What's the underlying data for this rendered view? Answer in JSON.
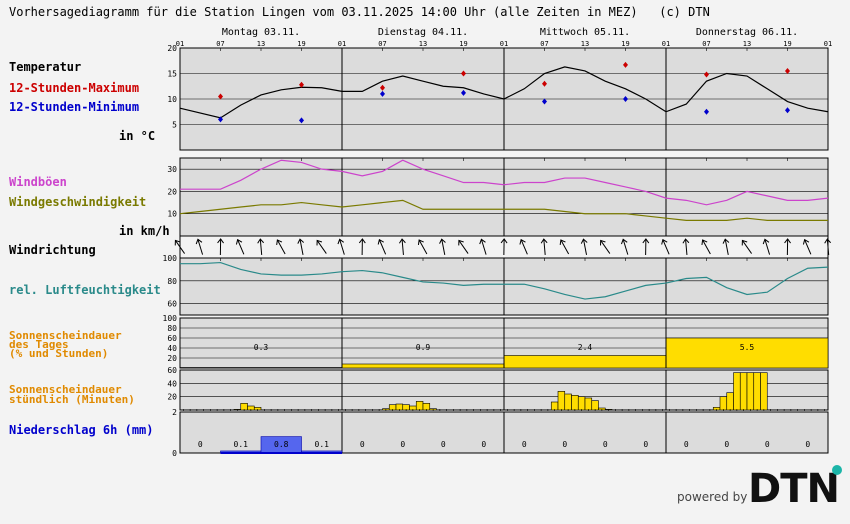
{
  "header": {
    "title": "Vorhersagediagramm für die Station Lingen vom 03.11.2025 14:00 Uhr (alle Zeiten in MEZ)   (c) DTN"
  },
  "labels": {
    "temperatur": "Temperatur",
    "max": "12-Stunden-Maximum",
    "min": "12-Stunden-Minimum",
    "temp_unit": "in °C",
    "windboeen": "Windböen",
    "windgeschw": "Windgeschwindigkeit",
    "wind_unit": "in km/h",
    "windrichtung": "Windrichtung",
    "feuchte": "rel. Luftfeuchtigkeit",
    "sonne_tag_1": "Sonnenscheindauer",
    "sonne_tag_2": "des Tages",
    "sonne_tag_3": "(% und Stunden)",
    "sonne_std_1": "Sonnenscheindauer",
    "sonne_std_2": "stündlich (Minuten)",
    "niederschlag": "Niederschlag 6h (mm)"
  },
  "colors": {
    "temp_line": "#000000",
    "max": "#cc0000",
    "min": "#0000cc",
    "gust": "#cc44cc",
    "wind": "#7a7a00",
    "humidity": "#2a8a8a",
    "sun": "#ffdd00",
    "sun_stroke": "#333300",
    "precip": "#5566ee",
    "panel": "#dcdcdc",
    "label_orange": "#e08a00",
    "label_olive": "#7a7a00",
    "label_teal": "#2a8a8a",
    "label_magenta": "#cc44cc",
    "label_blue": "#0000cc",
    "label_red": "#cc0000"
  },
  "branding": {
    "powered_by": "powered by",
    "logo": "DTN"
  },
  "chart_data": {
    "type": "meteogram",
    "days": [
      "Montag 03.11.",
      "Dienstag 04.11.",
      "Mittwoch 05.11.",
      "Donnerstag 06.11."
    ],
    "hour_ticks": [
      "01",
      "07",
      "13",
      "19",
      "01",
      "07",
      "13",
      "19",
      "01",
      "07",
      "13",
      "19",
      "01",
      "07",
      "13",
      "19",
      "01"
    ],
    "temperature": {
      "ylim": [
        0,
        20
      ],
      "ticks": [
        5,
        10,
        15,
        20
      ],
      "hours": [
        0,
        6,
        9,
        12,
        15,
        18,
        21,
        24,
        27,
        30,
        33,
        36,
        39,
        42,
        45,
        48,
        51,
        54,
        57,
        60,
        63,
        66,
        69,
        72,
        75,
        78,
        81,
        84,
        87,
        90,
        93,
        96
      ],
      "values": [
        8.2,
        6.3,
        8.8,
        10.8,
        11.8,
        12.3,
        12.2,
        11.5,
        11.5,
        13.5,
        14.5,
        13.5,
        12.5,
        12.2,
        11.0,
        10.0,
        12.0,
        15.0,
        16.3,
        15.5,
        13.5,
        12.0,
        10.0,
        7.5,
        9.0,
        13.5,
        15.0,
        14.5,
        12.0,
        9.5,
        8.2,
        7.5
      ],
      "max": [
        {
          "h": 6,
          "v": 10.5
        },
        {
          "h": 18,
          "v": 12.8
        },
        {
          "h": 30,
          "v": 12.2
        },
        {
          "h": 42,
          "v": 15.0
        },
        {
          "h": 54,
          "v": 13.0
        },
        {
          "h": 66,
          "v": 16.7
        },
        {
          "h": 78,
          "v": 14.8
        },
        {
          "h": 90,
          "v": 15.5
        }
      ],
      "min": [
        {
          "h": 6,
          "v": 6.0
        },
        {
          "h": 18,
          "v": 5.8
        },
        {
          "h": 30,
          "v": 11.0
        },
        {
          "h": 42,
          "v": 11.2
        },
        {
          "h": 54,
          "v": 9.5
        },
        {
          "h": 66,
          "v": 10.0
        },
        {
          "h": 78,
          "v": 7.5
        },
        {
          "h": 90,
          "v": 7.8
        }
      ]
    },
    "wind": {
      "ylim": [
        0,
        35
      ],
      "ticks": [
        10,
        20,
        30
      ],
      "hours": [
        0,
        3,
        6,
        9,
        12,
        15,
        18,
        21,
        24,
        27,
        30,
        33,
        36,
        39,
        42,
        45,
        48,
        51,
        54,
        57,
        60,
        63,
        66,
        69,
        72,
        75,
        78,
        81,
        84,
        87,
        90,
        93,
        96
      ],
      "gusts": [
        21,
        21,
        21,
        25,
        30,
        34,
        33,
        30,
        29,
        27,
        29,
        34,
        30,
        27,
        24,
        24,
        23,
        24,
        24,
        26,
        26,
        24,
        22,
        20,
        17,
        16,
        14,
        16,
        20,
        18,
        16,
        16,
        17
      ],
      "speed": [
        10,
        11,
        12,
        13,
        14,
        14,
        15,
        14,
        13,
        14,
        15,
        16,
        12,
        12,
        12,
        12,
        12,
        12,
        12,
        11,
        10,
        10,
        10,
        9,
        8,
        7,
        7,
        7,
        8,
        7,
        7,
        7,
        7
      ]
    },
    "wind_direction_note": "arrows every 3 h",
    "humidity": {
      "ylim": [
        50,
        100
      ],
      "ticks": [
        60,
        80,
        100
      ],
      "hours": [
        0,
        3,
        6,
        9,
        12,
        15,
        18,
        21,
        24,
        27,
        30,
        33,
        36,
        39,
        42,
        45,
        48,
        51,
        54,
        57,
        60,
        63,
        66,
        69,
        72,
        75,
        78,
        81,
        84,
        87,
        90,
        93,
        96
      ],
      "values": [
        95,
        95,
        96,
        90,
        86,
        85,
        85,
        86,
        88,
        89,
        87,
        83,
        79,
        78,
        76,
        77,
        77,
        77,
        73,
        68,
        64,
        66,
        71,
        76,
        78,
        82,
        83,
        74,
        68,
        70,
        82,
        91,
        92
      ]
    },
    "sunshine_daily": {
      "ylim": [
        0,
        100
      ],
      "ticks": [
        20,
        40,
        60,
        80,
        100
      ],
      "percent": [
        1,
        8,
        25,
        60
      ],
      "hours_label": [
        "0.3",
        "0.9",
        "2.4",
        "5.5"
      ]
    },
    "sunshine_hourly": {
      "ylim": [
        0,
        60
      ],
      "ticks": [
        20,
        40,
        60
      ],
      "hours": [
        8,
        9,
        10,
        11,
        30,
        31,
        32,
        33,
        34,
        35,
        36,
        37,
        55,
        56,
        57,
        58,
        59,
        60,
        61,
        62,
        63,
        79,
        80,
        81,
        82,
        83,
        84,
        85,
        86
      ],
      "minutes": [
        1,
        10,
        6,
        4,
        2,
        8,
        9,
        8,
        6,
        13,
        10,
        2,
        12,
        28,
        24,
        22,
        20,
        18,
        14,
        3,
        1,
        4,
        20,
        26,
        56,
        56,
        56,
        56,
        56
      ]
    },
    "precipitation_6h": {
      "ylim": [
        0,
        2
      ],
      "ticks": [
        2
      ],
      "values": [
        0,
        0.1,
        0.8,
        0.1,
        0,
        0,
        0,
        0,
        0,
        0,
        0,
        0,
        0,
        0,
        0,
        0
      ],
      "labels": [
        "0",
        "0.1",
        "0.8",
        "0.1",
        "0",
        "0",
        "0",
        "0",
        "0",
        "0",
        "0",
        "0",
        "0",
        "0",
        "0",
        "0"
      ]
    }
  }
}
